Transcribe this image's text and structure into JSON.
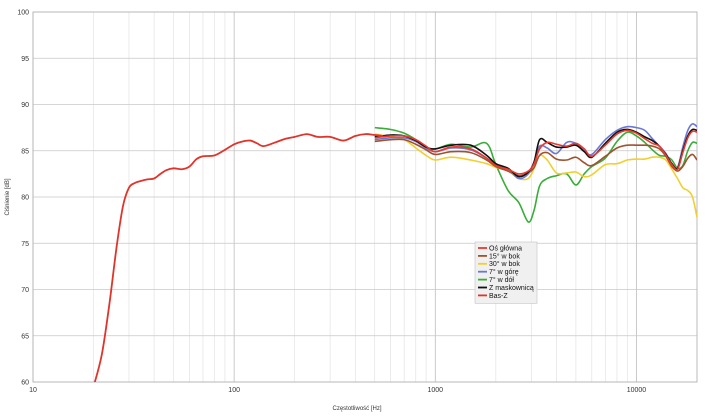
{
  "chart_data": {
    "type": "line",
    "xlabel": "Częstotliwość [Hz]",
    "ylabel": "Ciśnienie [dB]",
    "xscale": "log",
    "xlim": [
      10,
      20000
    ],
    "ylim": [
      60,
      100
    ],
    "grid": true,
    "legend_position": "center-right",
    "x_tick_labels": [
      "10",
      "100",
      "1000",
      "10000"
    ],
    "y_ticks": [
      60,
      65,
      70,
      75,
      80,
      85,
      90,
      95,
      100
    ],
    "series": [
      {
        "name": "Oś główna",
        "color": "#e83a2e",
        "x": [
          500,
          600,
          700,
          800,
          900,
          1000,
          1200,
          1500,
          1800,
          2000,
          2300,
          2600,
          2900,
          3100,
          3300,
          3600,
          4000,
          4500,
          5000,
          5500,
          6000,
          7000,
          8000,
          9000,
          10000,
          11000,
          12000,
          13000,
          14000,
          15000,
          16000,
          17000,
          18000,
          19000,
          20000
        ],
        "y": [
          86.4,
          86.6,
          86.6,
          86.2,
          85.5,
          84.9,
          85.4,
          85.2,
          84.2,
          83.4,
          83.0,
          82.5,
          82.8,
          83.6,
          85.2,
          85.9,
          85.7,
          85.5,
          85.8,
          85.2,
          84.4,
          85.6,
          86.8,
          87.2,
          86.9,
          86.3,
          85.8,
          85.5,
          84.5,
          83.5,
          83.0,
          84.8,
          86.4,
          87.1,
          87.0
        ]
      },
      {
        "name": "15° w bok",
        "color": "#a0522d",
        "x": [
          500,
          600,
          700,
          800,
          900,
          1000,
          1200,
          1500,
          1800,
          2000,
          2300,
          2600,
          2900,
          3100,
          3300,
          3600,
          4000,
          4500,
          5000,
          5500,
          6000,
          7000,
          8000,
          9000,
          10000,
          11000,
          12000,
          13000,
          14000,
          15000,
          16000,
          17000,
          18000,
          19000,
          20000
        ],
        "y": [
          86.0,
          86.2,
          86.2,
          85.7,
          85.1,
          84.6,
          84.9,
          84.8,
          84.0,
          83.3,
          82.8,
          82.3,
          82.6,
          83.2,
          84.5,
          84.8,
          84.1,
          84.0,
          84.3,
          83.7,
          83.4,
          84.4,
          85.3,
          85.6,
          85.6,
          85.6,
          85.5,
          85.2,
          84.4,
          83.3,
          82.8,
          83.3,
          84.2,
          84.6,
          84.0
        ]
      },
      {
        "name": "30° w bok",
        "color": "#f2cf30",
        "x": [
          500,
          600,
          700,
          800,
          900,
          1000,
          1200,
          1500,
          1800,
          2000,
          2300,
          2600,
          2900,
          3100,
          3300,
          3600,
          4000,
          4500,
          5000,
          5500,
          6000,
          7000,
          8000,
          9000,
          10000,
          11000,
          12000,
          13000,
          14000,
          15000,
          16000,
          17000,
          18000,
          19000,
          20000
        ],
        "y": [
          86.8,
          86.5,
          86.2,
          85.3,
          84.5,
          84.0,
          84.3,
          84.0,
          83.6,
          83.2,
          82.8,
          82.0,
          82.0,
          83.1,
          84.5,
          84.0,
          82.6,
          82.6,
          82.7,
          82.2,
          82.4,
          83.5,
          83.6,
          84.0,
          84.1,
          84.1,
          84.3,
          84.3,
          84.0,
          83.0,
          82.0,
          81.0,
          80.7,
          80.0,
          77.8
        ]
      },
      {
        "name": "7° w górę",
        "color": "#6a78d4",
        "x": [
          500,
          600,
          700,
          800,
          900,
          1000,
          1200,
          1500,
          1800,
          2000,
          2300,
          2600,
          2900,
          3100,
          3300,
          3600,
          4000,
          4500,
          5000,
          5500,
          6000,
          7000,
          8000,
          9000,
          10000,
          11000,
          12000,
          13000,
          14000,
          15000,
          16000,
          17000,
          18000,
          19000,
          20000
        ],
        "y": [
          86.2,
          86.4,
          86.4,
          86.0,
          85.3,
          84.9,
          85.3,
          85.1,
          84.2,
          83.5,
          83.0,
          82.0,
          82.5,
          83.8,
          85.5,
          85.3,
          84.7,
          85.9,
          85.8,
          85.0,
          84.6,
          86.2,
          87.2,
          87.6,
          87.5,
          87.2,
          86.3,
          85.5,
          84.7,
          83.6,
          83.2,
          85.4,
          87.2,
          87.9,
          87.6
        ]
      },
      {
        "name": "7° w dół",
        "color": "#3aac3a",
        "x": [
          500,
          600,
          700,
          800,
          900,
          1000,
          1200,
          1500,
          1800,
          2000,
          2300,
          2600,
          2900,
          3100,
          3300,
          3600,
          4000,
          4500,
          5000,
          5500,
          6000,
          7000,
          8000,
          9000,
          10000,
          11000,
          12000,
          13000,
          14000,
          15000,
          16000,
          17000,
          18000,
          19000,
          20000
        ],
        "y": [
          87.5,
          87.3,
          86.9,
          86.2,
          85.4,
          85.2,
          85.7,
          85.4,
          85.8,
          83.5,
          80.7,
          79.4,
          77.3,
          78.6,
          81.2,
          82.0,
          82.3,
          82.5,
          81.3,
          82.5,
          83.3,
          84.2,
          86.0,
          87.0,
          86.6,
          85.9,
          85.1,
          84.5,
          84.4,
          84.0,
          83.1,
          83.4,
          85.0,
          85.9,
          85.8
        ]
      },
      {
        "name": "Z maskownicą",
        "color": "#111111",
        "x": [
          500,
          600,
          700,
          800,
          900,
          1000,
          1200,
          1500,
          1800,
          2000,
          2300,
          2600,
          2900,
          3100,
          3300,
          3600,
          4000,
          4500,
          5000,
          5500,
          6000,
          7000,
          8000,
          9000,
          10000,
          11000,
          12000,
          13000,
          14000,
          15000,
          16000,
          17000,
          18000,
          19000,
          20000
        ],
        "y": [
          86.5,
          86.7,
          86.6,
          86.1,
          85.4,
          85.2,
          85.6,
          85.6,
          84.5,
          83.6,
          83.1,
          82.2,
          82.7,
          83.8,
          86.2,
          85.9,
          85.4,
          85.4,
          85.6,
          84.9,
          84.3,
          85.8,
          87.0,
          87.3,
          87.0,
          86.5,
          86.1,
          85.5,
          84.6,
          83.6,
          83.1,
          85.0,
          86.6,
          87.3,
          87.2
        ]
      },
      {
        "name": "Bas-Z",
        "color": "#e0332a",
        "x": [
          20,
          22,
          24,
          26,
          28,
          30,
          32,
          34,
          37,
          40,
          43,
          46,
          50,
          55,
          60,
          65,
          70,
          80,
          90,
          100,
          110,
          120,
          130,
          140,
          160,
          180,
          200,
          230,
          260,
          300,
          350,
          400,
          450,
          500,
          550
        ],
        "y": [
          59.5,
          63.0,
          68.5,
          74.5,
          79.0,
          81.0,
          81.5,
          81.7,
          81.9,
          82.0,
          82.5,
          82.9,
          83.1,
          83.0,
          83.3,
          84.1,
          84.4,
          84.5,
          85.1,
          85.7,
          86.0,
          86.1,
          85.8,
          85.5,
          85.9,
          86.3,
          86.5,
          86.8,
          86.5,
          86.5,
          86.1,
          86.6,
          86.8,
          86.7,
          86.6
        ]
      }
    ]
  }
}
